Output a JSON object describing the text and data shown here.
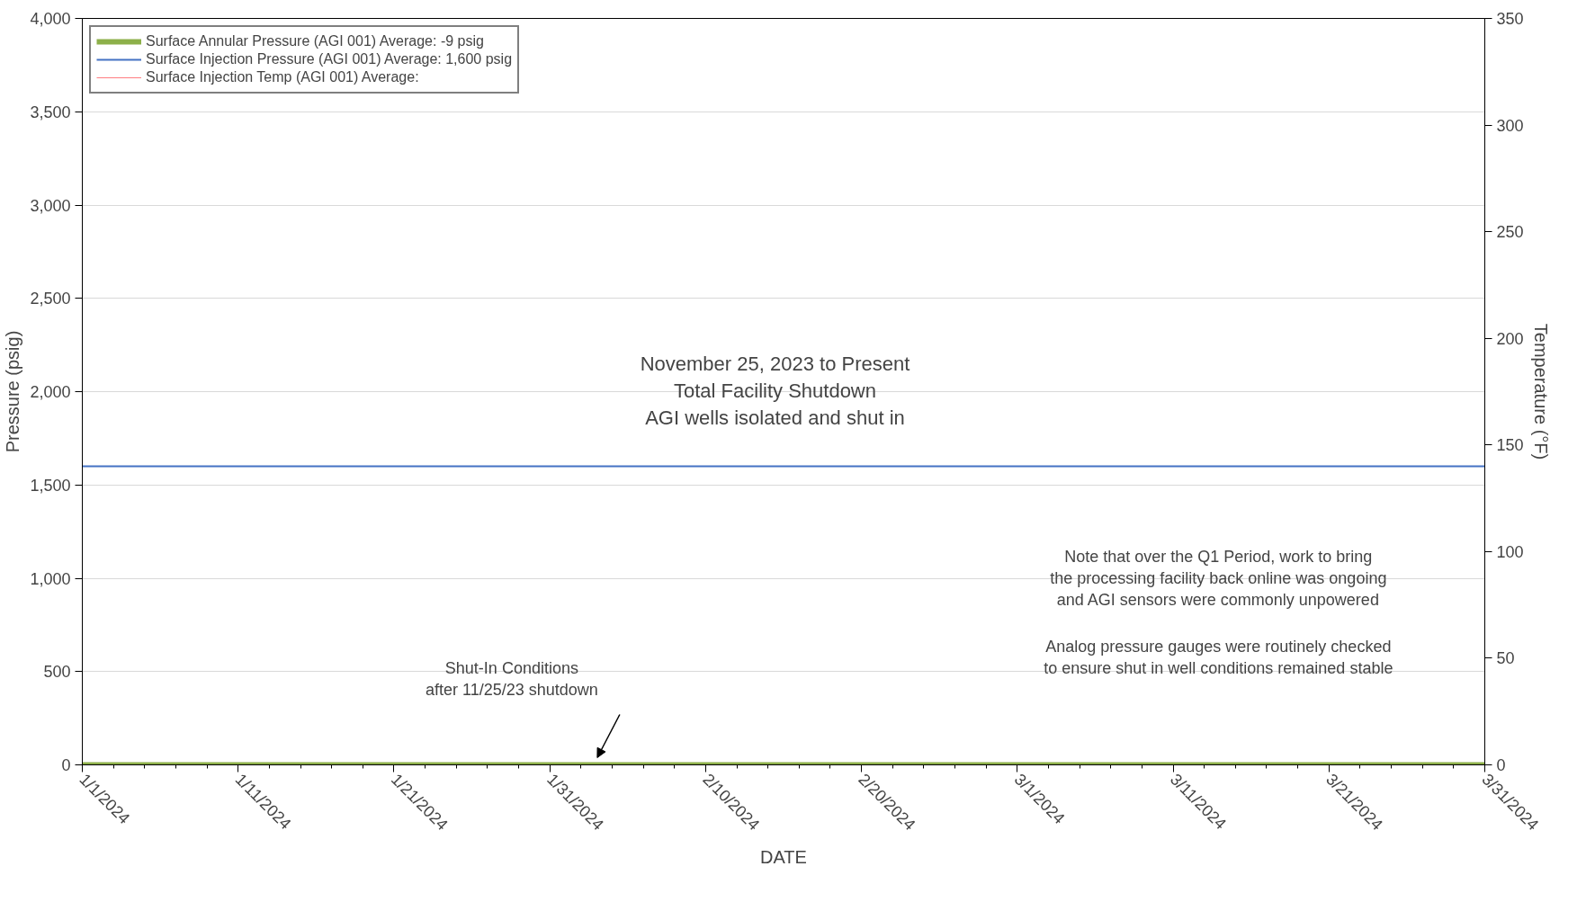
{
  "chart_data": {
    "type": "line",
    "xlabel": "DATE",
    "ylabel": "Pressure (psig)",
    "y2label": "Temperature (°F)",
    "x": [
      "2024-01-01",
      "2024-03-31"
    ],
    "series": [
      {
        "name": "Surface Annular Pressure (AGI 001) Average: -9 psig",
        "color": "#8db04a",
        "values": [
          0,
          0
        ]
      },
      {
        "name": "Surface Injection Pressure (AGI 001) Average: 1,600 psig",
        "color": "#4472c4",
        "values": [
          1600,
          1600
        ]
      },
      {
        "name": "Surface Injection Temp (AGI 001) Average:",
        "color": "#ff7c80",
        "values": [
          null,
          null
        ]
      }
    ],
    "xlim": [
      "2024-01-01",
      "2024-03-31"
    ],
    "xticks": [
      {
        "value": "2024-01-01",
        "label": "1/1/2024"
      },
      {
        "value": "2024-01-03",
        "label": null
      },
      {
        "value": "2024-01-05",
        "label": null
      },
      {
        "value": "2024-01-07",
        "label": null
      },
      {
        "value": "2024-01-09",
        "label": null
      },
      {
        "value": "2024-01-11",
        "label": "1/11/2024"
      },
      {
        "value": "2024-01-13",
        "label": null
      },
      {
        "value": "2024-01-15",
        "label": null
      },
      {
        "value": "2024-01-17",
        "label": null
      },
      {
        "value": "2024-01-19",
        "label": null
      },
      {
        "value": "2024-01-21",
        "label": "1/21/2024"
      },
      {
        "value": "2024-01-23",
        "label": null
      },
      {
        "value": "2024-01-25",
        "label": null
      },
      {
        "value": "2024-01-27",
        "label": null
      },
      {
        "value": "2024-01-29",
        "label": null
      },
      {
        "value": "2024-01-31",
        "label": "1/31/2024"
      },
      {
        "value": "2024-02-02",
        "label": null
      },
      {
        "value": "2024-02-04",
        "label": null
      },
      {
        "value": "2024-02-06",
        "label": null
      },
      {
        "value": "2024-02-08",
        "label": null
      },
      {
        "value": "2024-02-10",
        "label": "2/10/2024"
      },
      {
        "value": "2024-02-12",
        "label": null
      },
      {
        "value": "2024-02-14",
        "label": null
      },
      {
        "value": "2024-02-16",
        "label": null
      },
      {
        "value": "2024-02-18",
        "label": null
      },
      {
        "value": "2024-02-20",
        "label": "2/20/2024"
      },
      {
        "value": "2024-02-22",
        "label": null
      },
      {
        "value": "2024-02-24",
        "label": null
      },
      {
        "value": "2024-02-26",
        "label": null
      },
      {
        "value": "2024-02-28",
        "label": null
      },
      {
        "value": "2024-03-01",
        "label": "3/1/2024"
      },
      {
        "value": "2024-03-03",
        "label": null
      },
      {
        "value": "2024-03-05",
        "label": null
      },
      {
        "value": "2024-03-07",
        "label": null
      },
      {
        "value": "2024-03-09",
        "label": null
      },
      {
        "value": "2024-03-11",
        "label": "3/11/2024"
      },
      {
        "value": "2024-03-13",
        "label": null
      },
      {
        "value": "2024-03-15",
        "label": null
      },
      {
        "value": "2024-03-17",
        "label": null
      },
      {
        "value": "2024-03-19",
        "label": null
      },
      {
        "value": "2024-03-21",
        "label": "3/21/2024"
      },
      {
        "value": "2024-03-23",
        "label": null
      },
      {
        "value": "2024-03-25",
        "label": null
      },
      {
        "value": "2024-03-27",
        "label": null
      },
      {
        "value": "2024-03-29",
        "label": null
      },
      {
        "value": "2024-03-31",
        "label": "3/31/2024"
      }
    ],
    "ylim": [
      0,
      4000
    ],
    "yticks": [
      0,
      500,
      {
        "value": 1000,
        "label": "1,000"
      },
      {
        "value": 1500,
        "label": "1,500"
      },
      {
        "value": 2000,
        "label": "2,000"
      },
      {
        "value": 2500,
        "label": "2,500"
      },
      {
        "value": 3000,
        "label": "3,000"
      },
      {
        "value": 3500,
        "label": "3,500"
      },
      {
        "value": 4000,
        "label": "4,000"
      }
    ],
    "y2lim": [
      0,
      350
    ],
    "y2ticks": [
      0,
      50,
      100,
      150,
      200,
      250,
      300,
      350
    ],
    "grid": "y",
    "legend": "top left",
    "marker": "none",
    "line_style": "solid",
    "annotations": [
      "November 25, 2023 to Present\nTotal Facility Shutdown\nAGI wells isolated and shut in",
      "Note that over the Q1 Period, work to bring\nthe processing facility back online was ongoing\nand AGI sensors were commonly unpowered",
      "Analog pressure gauges were routinely checked\nto ensure shut in well conditions remained stable",
      "Shut-In Conditions\nafter 11/25/23 shutdown"
    ]
  }
}
